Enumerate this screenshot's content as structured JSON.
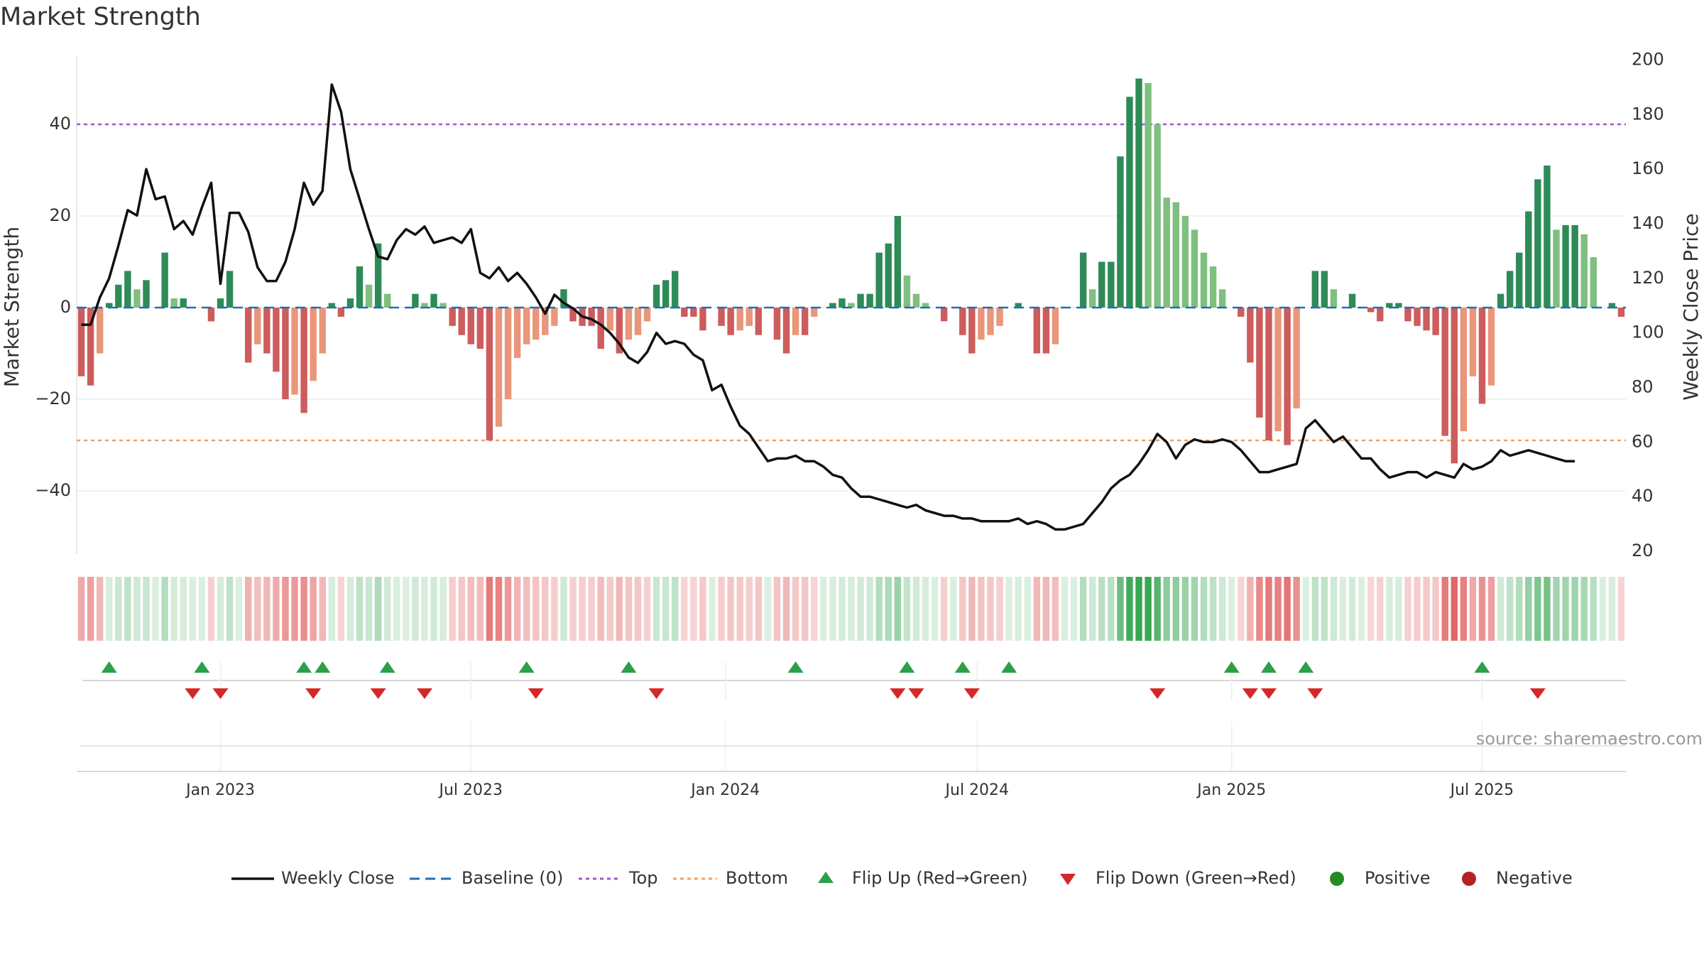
{
  "chart_data": {
    "type": "bar",
    "title": "Market Strength",
    "ylabel": "Market Strength",
    "y2label": "Weekly Close Price",
    "ylim": [
      -55,
      55
    ],
    "y2lim": [
      20,
      200
    ],
    "yticks": [
      -40,
      -20,
      0,
      20,
      40
    ],
    "y2ticks": [
      20,
      40,
      60,
      80,
      100,
      120,
      140,
      160,
      180,
      200
    ],
    "x_start": "2022-09-19",
    "x_end": "2025-10-13",
    "xticks": [
      {
        "date": "2023-01-01",
        "label": "Jan 2023"
      },
      {
        "date": "2023-07-01",
        "label": "Jul 2023"
      },
      {
        "date": "2024-01-01",
        "label": "Jan 2024"
      },
      {
        "date": "2024-07-01",
        "label": "Jul 2024"
      },
      {
        "date": "2025-01-01",
        "label": "Jan 2025"
      },
      {
        "date": "2025-07-01",
        "label": "Jul 2025"
      }
    ],
    "top_threshold": 40,
    "bottom_threshold": -29,
    "grid": true,
    "legend_position": "bottom",
    "colors": {
      "price_line": "#111111",
      "baseline": "#1f6fb4",
      "top": "#9b59d0",
      "bottom": "#f0a060",
      "flip_up": "#2ca048",
      "flip_down": "#d62728",
      "strong_pos": "#2e8b57",
      "weak_pos": "#7fbf7f",
      "strong_neg": "#cd5c5c",
      "weak_neg": "#e9967a",
      "positive": "#228b22",
      "negative": "#b22222"
    },
    "strength": [
      -15,
      -17,
      -10,
      1,
      5,
      8,
      4,
      6,
      0,
      12,
      2,
      2,
      0,
      0,
      -3,
      2,
      8,
      0,
      -12,
      -8,
      -10,
      -14,
      -20,
      -19,
      -23,
      -16,
      -10,
      1,
      -2,
      2,
      9,
      5,
      14,
      3,
      0,
      0,
      3,
      1,
      3,
      1,
      -4,
      -6,
      -8,
      -9,
      -29,
      -26,
      -20,
      -11,
      -8,
      -7,
      -6,
      -4,
      4,
      -3,
      -4,
      -4,
      -9,
      -5,
      -10,
      -7,
      -6,
      -3,
      5,
      6,
      8,
      -2,
      -2,
      -5,
      0,
      -4,
      -6,
      -5,
      -4,
      -6,
      0,
      -7,
      -10,
      -6,
      -6,
      -2,
      0,
      1,
      2,
      1,
      3,
      3,
      12,
      14,
      20,
      7,
      3,
      1,
      0,
      -3,
      0,
      -6,
      -10,
      -7,
      -6,
      -4,
      0,
      1,
      0,
      -10,
      -10,
      -8,
      0,
      0,
      12,
      4,
      10,
      10,
      33,
      46,
      50,
      49,
      40,
      24,
      23,
      20,
      17,
      12,
      9,
      4,
      0,
      -2,
      -12,
      -24,
      -29,
      -27,
      -30,
      -22,
      0,
      8,
      8,
      4,
      0,
      3,
      0,
      -1,
      -3,
      1,
      1,
      -3,
      -4,
      -5,
      -6,
      -28,
      -34,
      -27,
      -15,
      -21,
      -17,
      3,
      8,
      12,
      21,
      28,
      31,
      17,
      18,
      18,
      16,
      11,
      0,
      1,
      -2
    ],
    "price": [
      103,
      103,
      113,
      120,
      132,
      145,
      143,
      160,
      149,
      150,
      138,
      141,
      136,
      146,
      155,
      118,
      144,
      144,
      137,
      124,
      119,
      119,
      126,
      138,
      155,
      147,
      152,
      191,
      181,
      160,
      149,
      138,
      128,
      127,
      134,
      138,
      136,
      139,
      133,
      134,
      135,
      133,
      138,
      122,
      120,
      124,
      119,
      122,
      118,
      113,
      107,
      114,
      111,
      109,
      106,
      105,
      103,
      100,
      96,
      91,
      89,
      93,
      100,
      96,
      97,
      96,
      92,
      90,
      79,
      81,
      73,
      66,
      63,
      58,
      53,
      54,
      54,
      55,
      53,
      53,
      51,
      48,
      47,
      43,
      40,
      40,
      39,
      38,
      37,
      36,
      37,
      35,
      34,
      33,
      33,
      32,
      32,
      31,
      31,
      31,
      31,
      32,
      30,
      31,
      30,
      28,
      28,
      29,
      30,
      34,
      38,
      43,
      46,
      48,
      52,
      57,
      63,
      60,
      54,
      59,
      61,
      60,
      60,
      61,
      60,
      57,
      53,
      49,
      49,
      50,
      51,
      52,
      65,
      68,
      64,
      60,
      62,
      58,
      54,
      54,
      50,
      47,
      48,
      49,
      49,
      47,
      49,
      48,
      47,
      52,
      50,
      51,
      53,
      57,
      55,
      56,
      57,
      56,
      55,
      54,
      53,
      53
    ],
    "flip_up_weeks": [
      3,
      13,
      24,
      26,
      33,
      48,
      59,
      77,
      89,
      95,
      100,
      124,
      128,
      132,
      151
    ],
    "flip_down_weeks": [
      12,
      15,
      25,
      32,
      37,
      49,
      62,
      88,
      90,
      96,
      116,
      126,
      128,
      133,
      157
    ],
    "rows": [
      {
        "label": "Weekly Close"
      },
      {
        "label": "Baseline (0)"
      },
      {
        "label": "Top"
      },
      {
        "label": "Bottom"
      },
      {
        "label": "Flip Up (Red→Green)"
      },
      {
        "label": "Flip Down (Green→Red)"
      },
      {
        "label": "Positive"
      },
      {
        "label": "Negative"
      }
    ],
    "source": "source: sharemaestro.com"
  }
}
